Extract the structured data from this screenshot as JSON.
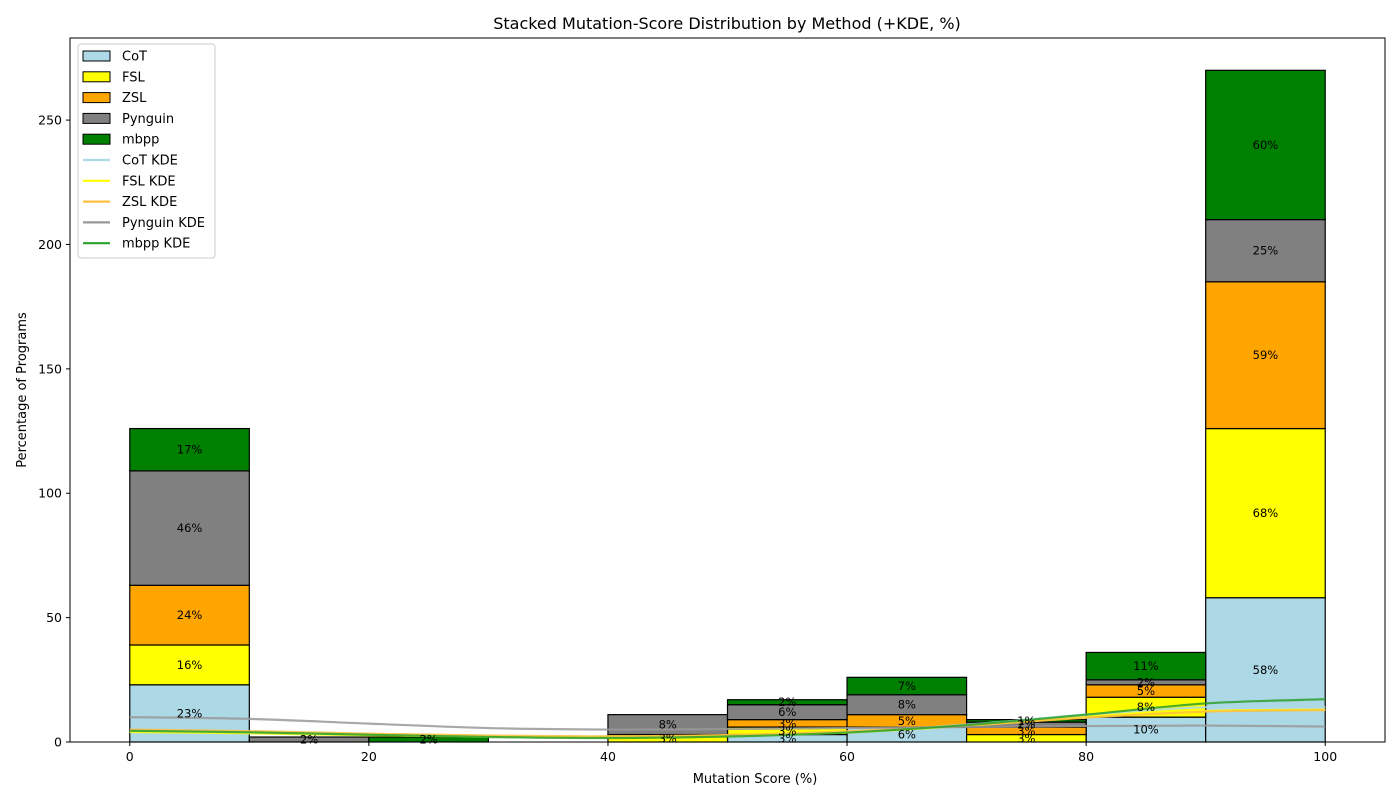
{
  "chart_data": {
    "type": "bar",
    "title": "Stacked Mutation-Score Distribution by Method (+KDE, %)",
    "xlabel": "Mutation Score (%)",
    "ylabel": "Percentage of Programs",
    "xlim": [
      -5,
      105
    ],
    "ylim": [
      0,
      283
    ],
    "xticks": [
      "0",
      "20",
      "40",
      "60",
      "80",
      "100"
    ],
    "yticks": [
      "0",
      "50",
      "100",
      "150",
      "200",
      "250"
    ],
    "bin_edges": [
      0,
      10,
      20,
      30,
      40,
      50,
      60,
      70,
      80,
      90,
      100
    ],
    "legend_position": "upper-left",
    "series": [
      {
        "name": "CoT",
        "color": "#add8e6",
        "values": [
          23,
          0,
          0,
          0,
          0,
          3,
          6,
          0,
          10,
          58
        ],
        "labels": [
          "23%",
          "",
          "",
          "",
          "",
          "3%",
          "6%",
          "",
          "10%",
          "58%"
        ]
      },
      {
        "name": "FSL",
        "color": "#ffff00",
        "values": [
          16,
          0,
          0,
          0,
          3,
          3,
          0,
          3,
          8,
          68
        ],
        "labels": [
          "16%",
          "",
          "",
          "",
          "3%",
          "3%",
          "",
          "3%",
          "8%",
          "68%"
        ]
      },
      {
        "name": "ZSL",
        "color": "#ffa500",
        "values": [
          24,
          0,
          0,
          0,
          0,
          3,
          5,
          3,
          5,
          59
        ],
        "labels": [
          "24%",
          "",
          "",
          "",
          "",
          "3%",
          "5%",
          "3%",
          "5%",
          "59%"
        ]
      },
      {
        "name": "Pynguin",
        "color": "#808080",
        "values": [
          46,
          2,
          0,
          0,
          8,
          6,
          8,
          2,
          2,
          25
        ],
        "labels": [
          "46%",
          "2%",
          "",
          "",
          "8%",
          "6%",
          "8%",
          "2%",
          "2%",
          "25%"
        ]
      },
      {
        "name": "mbpp",
        "color": "#008000",
        "values": [
          17,
          0,
          2,
          0,
          0,
          2,
          7,
          1,
          11,
          60
        ],
        "labels": [
          "17%",
          "",
          "2%",
          "",
          "",
          "2%",
          "7%",
          "1%",
          "11%",
          "60%"
        ]
      }
    ],
    "kde": [
      {
        "name": "CoT KDE",
        "color": "#add8e6",
        "x": [
          0,
          10,
          20,
          30,
          40,
          50,
          60,
          70,
          80,
          90,
          100
        ],
        "y": [
          4,
          3.5,
          2.8,
          2.2,
          2,
          2.6,
          4,
          7,
          11,
          14,
          14
        ]
      },
      {
        "name": "FSL KDE",
        "color": "#ffff00",
        "x": [
          0,
          10,
          20,
          30,
          40,
          50,
          60,
          70,
          80,
          90,
          100
        ],
        "y": [
          4,
          3.5,
          2.7,
          2.1,
          1.9,
          2.5,
          3.8,
          6.5,
          10,
          12.5,
          13
        ]
      },
      {
        "name": "ZSL KDE",
        "color": "#ffbf40",
        "x": [
          0,
          10,
          20,
          30,
          40,
          50,
          60,
          70,
          80,
          90,
          100
        ],
        "y": [
          5,
          4.4,
          3.4,
          2.6,
          2.3,
          2.8,
          4.3,
          6.6,
          9.8,
          12.2,
          12.8
        ]
      },
      {
        "name": "Pynguin KDE",
        "color": "#999999",
        "x": [
          0,
          10,
          20,
          30,
          40,
          50,
          60,
          70,
          80,
          90,
          100
        ],
        "y": [
          10,
          9.3,
          7.4,
          5.6,
          5,
          5.2,
          5.6,
          6,
          6.4,
          6.6,
          6.2
        ]
      },
      {
        "name": "mbpp KDE",
        "color": "#2ca02c",
        "x": [
          0,
          10,
          20,
          30,
          40,
          50,
          60,
          70,
          80,
          90,
          100
        ],
        "y": [
          4.5,
          3.9,
          2.9,
          2,
          1.6,
          2.2,
          3.8,
          6.8,
          11,
          15.5,
          17.2
        ]
      }
    ]
  }
}
